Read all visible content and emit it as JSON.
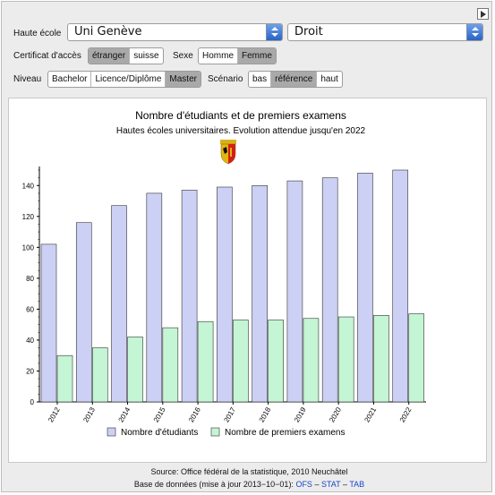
{
  "controls": {
    "haute_ecole_label": "Haute école",
    "haute_ecole_value": "Uni Genève",
    "domaine_value": "Droit",
    "certificat_label": "Certificat d'accès",
    "certificat_options": [
      "étranger",
      "suisse"
    ],
    "certificat_selected": "étranger",
    "sexe_label": "Sexe",
    "sexe_options": [
      "Homme",
      "Femme"
    ],
    "sexe_selected": "Femme",
    "niveau_label": "Niveau",
    "niveau_options": [
      "Bachelor",
      "Licence/Diplôme",
      "Master"
    ],
    "niveau_selected": "Master",
    "scenario_label": "Scénario",
    "scenario_options": [
      "bas",
      "référence",
      "haut"
    ],
    "scenario_selected": "référence"
  },
  "chart_data": {
    "type": "bar",
    "title": "Nombre d'étudiants et de premiers examens",
    "subtitle": "Hautes écoles universitaires. Evolution attendue jusqu'en 2022",
    "categories": [
      "2012",
      "2013",
      "2014",
      "2015",
      "2016",
      "2017",
      "2018",
      "2019",
      "2020",
      "2021",
      "2022"
    ],
    "series": [
      {
        "name": "Nombre d'étudiants",
        "color": "#ccd0f5",
        "values": [
          102,
          116,
          127,
          135,
          137,
          139,
          140,
          143,
          145,
          148,
          150
        ]
      },
      {
        "name": "Nombre de premiers examens",
        "color": "#c4f5d4",
        "values": [
          30,
          35,
          42,
          48,
          52,
          53,
          53,
          54,
          55,
          56,
          57
        ]
      }
    ],
    "ylim": [
      0,
      150
    ],
    "yticks": [
      0,
      20,
      40,
      60,
      80,
      100,
      120,
      140
    ],
    "grid": false,
    "legend_position": "bottom",
    "emblem": "geneva-coat-of-arms-icon"
  },
  "footer": {
    "source": "Source: Office fédéral de la statistique, 2010 Neuchâtel",
    "database_prefix": "Base de données (mise à jour 2013−10−01): ",
    "links": [
      "OFS",
      "STAT",
      "TAB"
    ],
    "link_separator": " – "
  }
}
